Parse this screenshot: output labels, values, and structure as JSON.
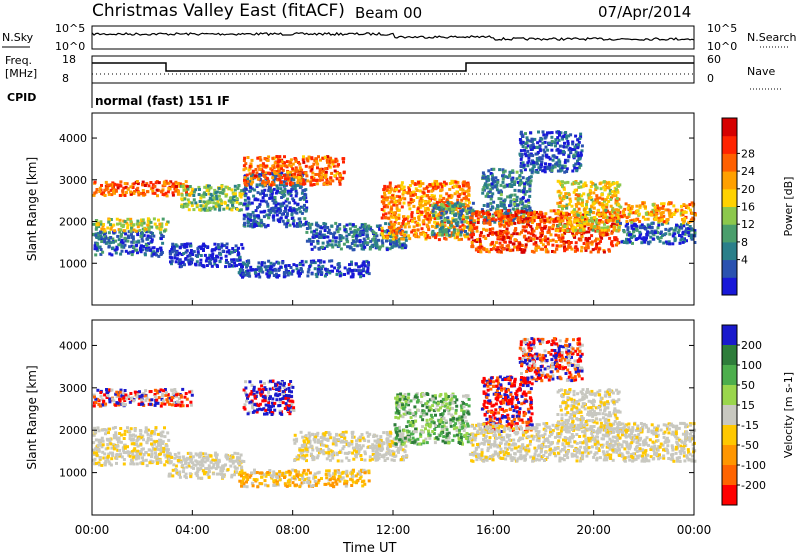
{
  "header": {
    "station": "Christmas Valley East (fitACF)",
    "beam": "Beam 00",
    "date": "07/Apr/2014"
  },
  "noise_panel": {
    "left_label": "N.Sky",
    "right_label": "N.Search",
    "left_ticks": [
      "10^5",
      "10^0"
    ],
    "right_ticks": [
      "10^5",
      "10^0"
    ]
  },
  "freq_panel": {
    "left_label_1": "Freq.",
    "left_label_2": "[MHz]",
    "right_label": "Nave",
    "left_ticks": [
      "18",
      "8"
    ],
    "right_ticks": [
      "60",
      "0"
    ]
  },
  "cpid": {
    "label": "CPID",
    "value": "normal (fast) 151 IF"
  },
  "chart_data": [
    {
      "type": "heatmap",
      "title": "",
      "xlabel": "Time UT",
      "ylabel": "Slant Range [km]",
      "xlim": [
        "00:00",
        "24:00"
      ],
      "ylim": [
        0,
        4600
      ],
      "x_ticks": [
        "00:00",
        "04:00",
        "08:00",
        "12:00",
        "16:00",
        "20:00",
        "00:00"
      ],
      "y_ticks": [
        "1000",
        "2000",
        "3000",
        "4000"
      ],
      "colorbar": {
        "label": "Power [dB]",
        "ticks": [
          "4",
          "8",
          "12",
          "16",
          "20",
          "24",
          "28"
        ],
        "colors": [
          "#1818d8",
          "#2a52b0",
          "#2a7f8a",
          "#4a9e6c",
          "#8cc84c",
          "#ffd200",
          "#ffa000",
          "#ff6000",
          "#ff2400",
          "#d60000"
        ]
      },
      "regions": [
        {
          "t0": 0.0,
          "t1": 2.8,
          "r0": 1200,
          "r1": 1800,
          "level": 0.82
        },
        {
          "t0": 0.0,
          "t1": 3.0,
          "r0": 1800,
          "r1": 2100,
          "level": 0.48
        },
        {
          "t0": 0.0,
          "t1": 4.0,
          "r0": 2650,
          "r1": 3000,
          "level": 0.22
        },
        {
          "t0": 3.0,
          "t1": 6.0,
          "r0": 950,
          "r1": 1500,
          "level": 0.93
        },
        {
          "t0": 3.5,
          "t1": 6.0,
          "r0": 2300,
          "r1": 2900,
          "level": 0.58
        },
        {
          "t0": 6.0,
          "t1": 8.5,
          "r0": 1900,
          "r1": 3200,
          "level": 0.85
        },
        {
          "t0": 5.8,
          "t1": 11.0,
          "r0": 700,
          "r1": 1100,
          "level": 0.88
        },
        {
          "t0": 8.5,
          "t1": 12.5,
          "r0": 1350,
          "r1": 2000,
          "level": 0.8
        },
        {
          "t0": 6.0,
          "t1": 10.0,
          "r0": 2900,
          "r1": 3600,
          "level": 0.25
        },
        {
          "t0": 11.5,
          "t1": 15.0,
          "r0": 1600,
          "r1": 3000,
          "level": 0.3
        },
        {
          "t0": 13.5,
          "t1": 15.2,
          "r0": 1700,
          "r1": 2500,
          "level": 0.7
        },
        {
          "t0": 15.5,
          "t1": 17.5,
          "r0": 2000,
          "r1": 3300,
          "level": 0.75
        },
        {
          "t0": 17.0,
          "t1": 19.5,
          "r0": 3200,
          "r1": 4200,
          "level": 0.86
        },
        {
          "t0": 15.0,
          "t1": 21.0,
          "r0": 1300,
          "r1": 2300,
          "level": 0.2
        },
        {
          "t0": 18.5,
          "t1": 21.0,
          "r0": 1800,
          "r1": 3000,
          "level": 0.45
        },
        {
          "t0": 21.0,
          "t1": 24.0,
          "r0": 1500,
          "r1": 2000,
          "level": 0.84
        },
        {
          "t0": 21.0,
          "t1": 24.0,
          "r0": 2000,
          "r1": 2500,
          "level": 0.35
        }
      ]
    },
    {
      "type": "heatmap",
      "title": "",
      "xlabel": "Time UT",
      "ylabel": "Slant Range [km]",
      "xlim": [
        "00:00",
        "24:00"
      ],
      "ylim": [
        0,
        4600
      ],
      "x_ticks": [
        "00:00",
        "04:00",
        "08:00",
        "12:00",
        "16:00",
        "20:00",
        "00:00"
      ],
      "y_ticks": [
        "1000",
        "2000",
        "3000",
        "4000"
      ],
      "colorbar": {
        "label": "Velocity [m s-1]",
        "ticks": [
          "200",
          "100",
          "50",
          "15",
          "-15",
          "-50",
          "-100",
          "-200"
        ],
        "colors": [
          "#1a1acc",
          "#2e7d3a",
          "#4cae4c",
          "#9ad64c",
          "#c8c8c0",
          "#ffc800",
          "#ff9600",
          "#ff6400",
          "#ff0000"
        ]
      },
      "regions": [
        {
          "t0": 0.0,
          "t1": 3.0,
          "r0": 1200,
          "r1": 2100,
          "class": "ground"
        },
        {
          "t0": 0.0,
          "t1": 4.0,
          "r0": 2600,
          "r1": 3000,
          "class": "mixed"
        },
        {
          "t0": 3.0,
          "t1": 6.0,
          "r0": 900,
          "r1": 1500,
          "class": "ground"
        },
        {
          "t0": 6.0,
          "t1": 8.0,
          "r0": 2400,
          "r1": 3200,
          "class": "blue"
        },
        {
          "t0": 5.8,
          "t1": 11.0,
          "r0": 700,
          "r1": 1100,
          "class": "orange"
        },
        {
          "t0": 8.0,
          "t1": 12.5,
          "r0": 1300,
          "r1": 2000,
          "class": "ground"
        },
        {
          "t0": 12.0,
          "t1": 15.0,
          "r0": 1700,
          "r1": 2900,
          "class": "green"
        },
        {
          "t0": 15.5,
          "t1": 17.5,
          "r0": 2000,
          "r1": 3300,
          "class": "red"
        },
        {
          "t0": 17.0,
          "t1": 19.5,
          "r0": 3200,
          "r1": 4200,
          "class": "mixed"
        },
        {
          "t0": 15.0,
          "t1": 24.0,
          "r0": 1300,
          "r1": 2200,
          "class": "ground"
        },
        {
          "t0": 18.5,
          "t1": 21.0,
          "r0": 2000,
          "r1": 3000,
          "class": "ground"
        }
      ]
    }
  ]
}
